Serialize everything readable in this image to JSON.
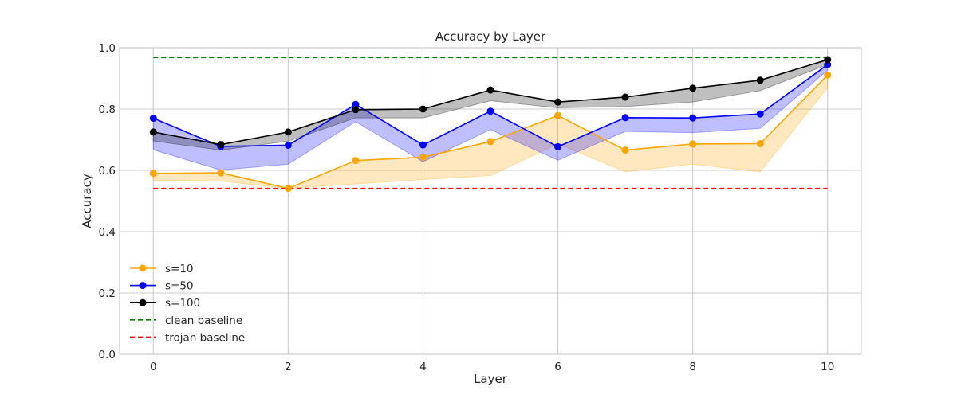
{
  "chart_data": {
    "type": "line",
    "title": "Accuracy by Layer",
    "xlabel": "Layer",
    "ylabel": "Accuracy",
    "xlim": [
      -0.5,
      10.5
    ],
    "ylim": [
      0.0,
      1.0
    ],
    "xticks": [
      0,
      2,
      4,
      6,
      8,
      10
    ],
    "yticks": [
      0.0,
      0.2,
      0.4,
      0.6,
      0.8,
      1.0
    ],
    "ytick_labels": [
      "0.0",
      "0.2",
      "0.4",
      "0.6",
      "0.8",
      "1.0"
    ],
    "grid": true,
    "legend_position": "lower-left",
    "x": [
      0,
      1,
      2,
      3,
      4,
      5,
      6,
      7,
      8,
      9,
      10
    ],
    "series": [
      {
        "name": "s=10",
        "color": "#ffa500",
        "values": [
          0.59,
          0.592,
          0.541,
          0.632,
          0.643,
          0.694,
          0.779,
          0.666,
          0.686,
          0.687,
          0.911
        ],
        "band_lower": [
          0.568,
          0.565,
          0.541,
          0.556,
          0.57,
          0.583,
          0.686,
          0.595,
          0.62,
          0.595,
          0.87
        ]
      },
      {
        "name": "s=50",
        "color": "#0000ff",
        "values": [
          0.77,
          0.678,
          0.682,
          0.815,
          0.683,
          0.793,
          0.677,
          0.772,
          0.771,
          0.784,
          0.945
        ],
        "band_lower": [
          0.667,
          0.601,
          0.62,
          0.759,
          0.628,
          0.733,
          0.633,
          0.727,
          0.723,
          0.737,
          0.927
        ]
      },
      {
        "name": "s=100",
        "color": "#000000",
        "values": [
          0.725,
          0.684,
          0.725,
          0.798,
          0.8,
          0.862,
          0.823,
          0.839,
          0.868,
          0.894,
          0.961
        ],
        "band_lower": [
          0.696,
          0.666,
          0.695,
          0.771,
          0.771,
          0.827,
          0.804,
          0.808,
          0.823,
          0.86,
          0.945
        ]
      }
    ],
    "baselines": [
      {
        "name": "clean baseline",
        "color": "#008000",
        "value": 0.968
      },
      {
        "name": "trojan baseline",
        "color": "#ff0000",
        "value": 0.541
      }
    ]
  }
}
